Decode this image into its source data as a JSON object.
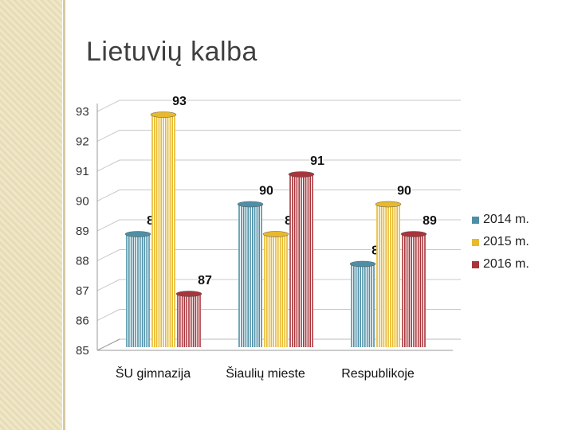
{
  "title": "Lietuvių kalba",
  "colors": {
    "s2014": "#4d8fa6",
    "s2015": "#e8b92c",
    "s2016": "#a8353b"
  },
  "chart_data": {
    "type": "bar",
    "title": "Lietuvių kalba",
    "categories": [
      "ŠU gimnazija",
      "Šiaulių mieste",
      "Respublikoje"
    ],
    "series": [
      {
        "name": "2014 m.",
        "values": [
          89,
          90,
          88
        ]
      },
      {
        "name": "2015 m.",
        "values": [
          93,
          89,
          90
        ]
      },
      {
        "name": "2016 m.",
        "values": [
          87,
          91,
          89
        ]
      }
    ],
    "ylim": [
      85,
      93
    ],
    "yticks": [
      85,
      86,
      87,
      88,
      89,
      90,
      91,
      92,
      93
    ],
    "grid": true,
    "legend": "right"
  }
}
